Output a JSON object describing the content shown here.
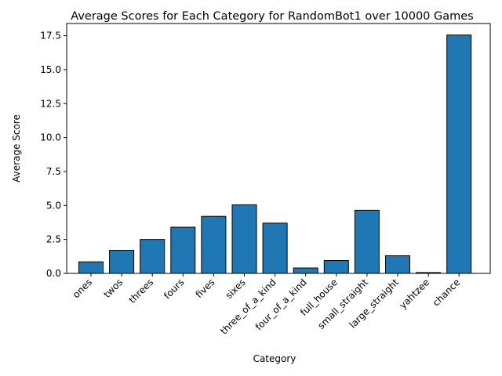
{
  "chart_data": {
    "type": "bar",
    "title": "Average Scores for Each Category for RandomBot1 over 10000 Games",
    "xlabel": "Category",
    "ylabel": "Average Score",
    "categories": [
      "ones",
      "twos",
      "threes",
      "fours",
      "fives",
      "sixes",
      "three_of_a_kind",
      "four_of_a_kind",
      "full_house",
      "small_straight",
      "large_straight",
      "yahtzee",
      "chance"
    ],
    "values": [
      0.85,
      1.7,
      2.5,
      3.4,
      4.2,
      5.05,
      3.7,
      0.4,
      0.95,
      4.65,
      1.3,
      0.06,
      17.55
    ],
    "ylim": [
      0,
      18.4
    ],
    "yticks": [
      "0.0",
      "2.5",
      "5.0",
      "7.5",
      "10.0",
      "12.5",
      "15.0",
      "17.5"
    ],
    "bar_color": "#1f77b4",
    "edge_color": "#000000",
    "grid": false,
    "legend": "none"
  }
}
